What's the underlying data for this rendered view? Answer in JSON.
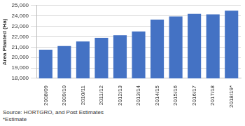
{
  "chart_data": {
    "type": "bar",
    "y_label": "Area Planted (Ha)",
    "categories": [
      "2008/09",
      "2009/10",
      "2010/11",
      "2011/12",
      "2012/13",
      "2013/14",
      "2014/15",
      "2015/16",
      "2016/17",
      "2017/18",
      "2018/19*"
    ],
    "values": [
      20750,
      21100,
      21550,
      21900,
      22150,
      22500,
      23650,
      23950,
      24200,
      24150,
      24500
    ],
    "color": "#4472c4",
    "ylim": [
      18000,
      25000
    ],
    "yticks": [
      {
        "value": 18000,
        "label": "18,000"
      },
      {
        "value": 19000,
        "label": "19,000"
      },
      {
        "value": 20000,
        "label": "20,000"
      },
      {
        "value": 21000,
        "label": "21,000"
      },
      {
        "value": 22000,
        "label": "22,000"
      },
      {
        "value": 23000,
        "label": "23,000"
      },
      {
        "value": 24000,
        "label": "24,000"
      },
      {
        "value": 25000,
        "label": "25,000"
      }
    ],
    "grid": true,
    "annotations": [
      "Source: HORTGRO, and Post Estimates",
      "*Estimate"
    ]
  }
}
